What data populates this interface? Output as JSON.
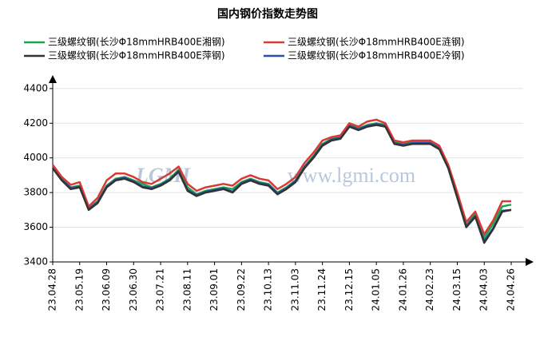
{
  "chart_data": {
    "type": "line",
    "title": "国内钢价指数走势图",
    "watermark": "www.lgmi.com",
    "logo": "LGMI",
    "categories": [
      "23.04.28",
      null,
      null,
      "23.05.19",
      null,
      null,
      "23.06.09",
      null,
      null,
      "23.06.30",
      null,
      null,
      "23.07.21",
      null,
      null,
      "23.08.11",
      null,
      null,
      "23.09.01",
      null,
      null,
      "23.09.22",
      null,
      null,
      "23.10.13",
      null,
      null,
      "23.11.03",
      null,
      null,
      "23.11.24",
      null,
      null,
      "23.12.15",
      null,
      null,
      "24.01.05",
      null,
      null,
      "24.01.26",
      null,
      null,
      "24.02.23",
      null,
      null,
      "24.03.15",
      null,
      null,
      "24.04.03",
      null,
      null,
      "24.04.26"
    ],
    "series": [
      {
        "name": "三级螺纹钢(长沙Φ18mmHRB400E湘钢)",
        "color": "#1aa84e",
        "values": [
          3950,
          3880,
          3830,
          3840,
          3710,
          3750,
          3840,
          3880,
          3890,
          3870,
          3850,
          3830,
          3850,
          3880,
          3930,
          3830,
          3790,
          3810,
          3820,
          3830,
          3820,
          3860,
          3880,
          3860,
          3850,
          3800,
          3830,
          3870,
          3950,
          4010,
          4080,
          4110,
          4120,
          4190,
          4170,
          4190,
          4200,
          4190,
          4090,
          4080,
          4090,
          4090,
          4090,
          4060,
          3950,
          3780,
          3610,
          3680,
          3540,
          3620,
          3720,
          3730
        ]
      },
      {
        "name": "三级螺纹钢(长沙Φ18mmHRB400E涟钢)",
        "color": "#d93a35",
        "values": [
          3960,
          3890,
          3845,
          3860,
          3720,
          3770,
          3870,
          3910,
          3910,
          3890,
          3860,
          3850,
          3880,
          3910,
          3950,
          3850,
          3810,
          3830,
          3840,
          3850,
          3840,
          3880,
          3900,
          3880,
          3870,
          3820,
          3850,
          3890,
          3970,
          4030,
          4100,
          4120,
          4130,
          4200,
          4180,
          4210,
          4220,
          4200,
          4100,
          4090,
          4100,
          4100,
          4100,
          4070,
          3960,
          3800,
          3630,
          3690,
          3560,
          3640,
          3750,
          3750
        ]
      },
      {
        "name": "三级螺纹钢(长沙Φ18mmHRB400E萍钢)",
        "color": "#333333",
        "values": [
          3940,
          3870,
          3820,
          3830,
          3700,
          3740,
          3830,
          3870,
          3880,
          3860,
          3830,
          3820,
          3840,
          3870,
          3920,
          3810,
          3780,
          3800,
          3810,
          3820,
          3800,
          3850,
          3870,
          3850,
          3840,
          3790,
          3820,
          3860,
          3940,
          4000,
          4070,
          4100,
          4110,
          4180,
          4160,
          4180,
          4190,
          4180,
          4080,
          4070,
          4080,
          4080,
          4080,
          4050,
          3940,
          3770,
          3600,
          3660,
          3510,
          3590,
          3690,
          3700
        ]
      },
      {
        "name": "三级螺纹钢(长沙Φ18mmHRB400E冷钢)",
        "color": "#2a4fa8",
        "values": [
          3945,
          3875,
          3825,
          3835,
          3705,
          3745,
          3835,
          3875,
          3885,
          3865,
          3835,
          3825,
          3845,
          3875,
          3925,
          3815,
          3785,
          3805,
          3815,
          3825,
          3805,
          3855,
          3875,
          3855,
          3845,
          3795,
          3825,
          3865,
          3945,
          4005,
          4075,
          4105,
          4115,
          4185,
          4165,
          4185,
          4195,
          4185,
          4085,
          4075,
          4085,
          4085,
          4085,
          4055,
          3945,
          3775,
          3605,
          3665,
          3520,
          3595,
          3695,
          3700
        ]
      }
    ],
    "ylim": [
      3400,
      4450
    ],
    "yticks": [
      3400,
      3600,
      3800,
      4000,
      4200,
      4400
    ],
    "grid": true
  }
}
